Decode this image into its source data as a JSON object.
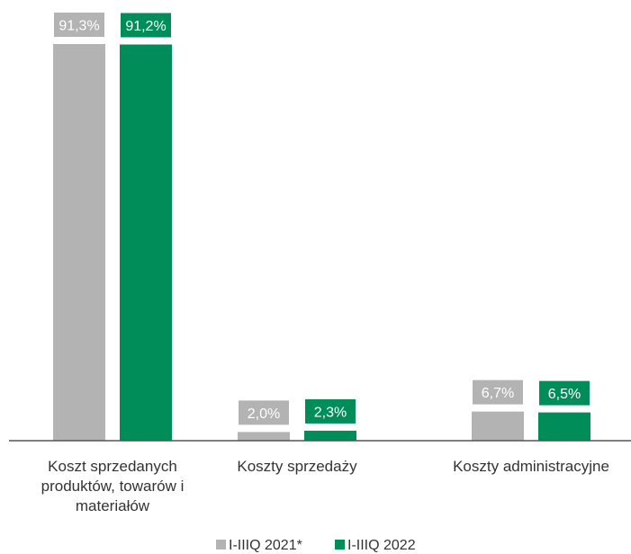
{
  "chart_data": {
    "type": "bar",
    "categories": [
      [
        "Koszt sprzedanych",
        "produktów, towarów i",
        "materiałów"
      ],
      [
        "Koszty sprzedaży"
      ],
      [
        "Koszty administracyjne"
      ]
    ],
    "series": [
      {
        "name": "I-IIIQ 2021*",
        "color": "#b3b3b3",
        "values": [
          91.3,
          2.0,
          6.7
        ],
        "labels": [
          "91,3%",
          "2,0%",
          "6,7%"
        ]
      },
      {
        "name": "I-IIIQ 2022",
        "color": "#008d5a",
        "values": [
          91.2,
          2.3,
          6.5
        ],
        "labels": [
          "91,2%",
          "2,3%",
          "6,5%"
        ]
      }
    ],
    "ylim": [
      0,
      100
    ],
    "grid": false,
    "legend": "bottom-center",
    "value_unit": "%"
  }
}
